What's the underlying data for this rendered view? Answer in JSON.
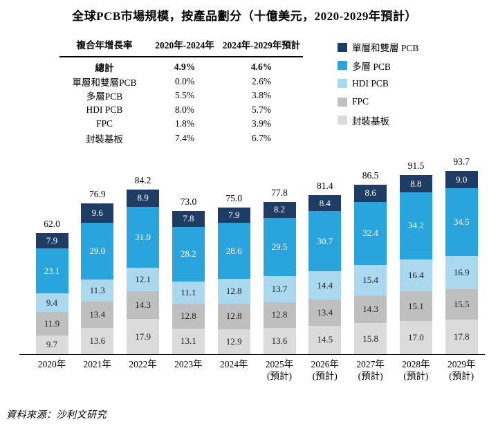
{
  "title": "全球PCB市場規模，按產品劃分（十億美元，2020-2029年預計）",
  "cagr_table": {
    "header": [
      "複合年增長率",
      "2020年-2024年",
      "2024年-2029年預計"
    ],
    "rows": [
      {
        "label": "總計",
        "cagr_2020_2024": "4.9%",
        "cagr_2024_2029": "4.6%",
        "bold": true
      },
      {
        "label": "單層和雙層PCB",
        "cagr_2020_2024": "0.0%",
        "cagr_2024_2029": "2.6%",
        "bold": false
      },
      {
        "label": "多層PCB",
        "cagr_2020_2024": "5.5%",
        "cagr_2024_2029": "3.8%",
        "bold": false
      },
      {
        "label": "HDI PCB",
        "cagr_2020_2024": "8.0%",
        "cagr_2024_2029": "5.7%",
        "bold": false
      },
      {
        "label": "FPC",
        "cagr_2020_2024": "1.8%",
        "cagr_2024_2029": "3.9%",
        "bold": false
      },
      {
        "label": "封裝基板",
        "cagr_2020_2024": "7.4%",
        "cagr_2024_2029": "6.7%",
        "bold": false
      }
    ]
  },
  "legend": [
    {
      "label": "單層和雙層 PCB",
      "color": "#1F3C64"
    },
    {
      "label": "多層 PCB",
      "color": "#29A4DC"
    },
    {
      "label": "HDI PCB",
      "color": "#A9D8EF"
    },
    {
      "label": "FPC",
      "color": "#BFBFBF"
    },
    {
      "label": "封裝基板",
      "color": "#DBDBDB"
    }
  ],
  "chart_data": {
    "type": "bar",
    "stacked": true,
    "title": "全球PCB市場規模，按產品劃分（十億美元，2020-2029年預計）",
    "unit": "十億美元",
    "categories": [
      "2020年",
      "2021年",
      "2022年",
      "2023年",
      "2024年",
      "2025年\n(預計)",
      "2026年\n(預計)",
      "2027年\n(預計)",
      "2028年\n(預計)",
      "2029年\n(預計)"
    ],
    "totals": [
      62.0,
      76.9,
      84.2,
      73.0,
      75.0,
      77.8,
      81.4,
      86.5,
      91.5,
      93.7
    ],
    "series": [
      {
        "name": "封裝基板",
        "color": "#DBDBDB",
        "label_color": "#222222",
        "values": [
          9.7,
          13.6,
          17.9,
          13.1,
          12.9,
          13.6,
          14.5,
          15.8,
          17.0,
          17.8
        ]
      },
      {
        "name": "FPC",
        "color": "#BFBFBF",
        "label_color": "#222222",
        "values": [
          11.9,
          13.4,
          14.3,
          12.8,
          12.8,
          12.8,
          13.4,
          14.3,
          15.1,
          15.5
        ]
      },
      {
        "name": "HDI PCB",
        "color": "#A9D8EF",
        "label_color": "#222222",
        "values": [
          9.4,
          11.3,
          12.1,
          11.1,
          12.8,
          13.7,
          14.4,
          15.4,
          16.4,
          16.9
        ]
      },
      {
        "name": "多層 PCB",
        "color": "#29A4DC",
        "label_color": "#ffffff",
        "values": [
          23.1,
          29.0,
          31.0,
          28.2,
          28.6,
          29.5,
          30.7,
          32.4,
          34.2,
          34.5
        ]
      },
      {
        "name": "單層和雙層 PCB",
        "color": "#1F3C64",
        "label_color": "#ffffff",
        "values": [
          7.9,
          9.6,
          8.9,
          7.8,
          7.9,
          8.2,
          8.4,
          8.6,
          8.8,
          9.0
        ]
      }
    ],
    "ylim": [
      0,
      98
    ],
    "grid": false,
    "legend_position": "top-right"
  },
  "source": "資料來源：沙利文研究"
}
